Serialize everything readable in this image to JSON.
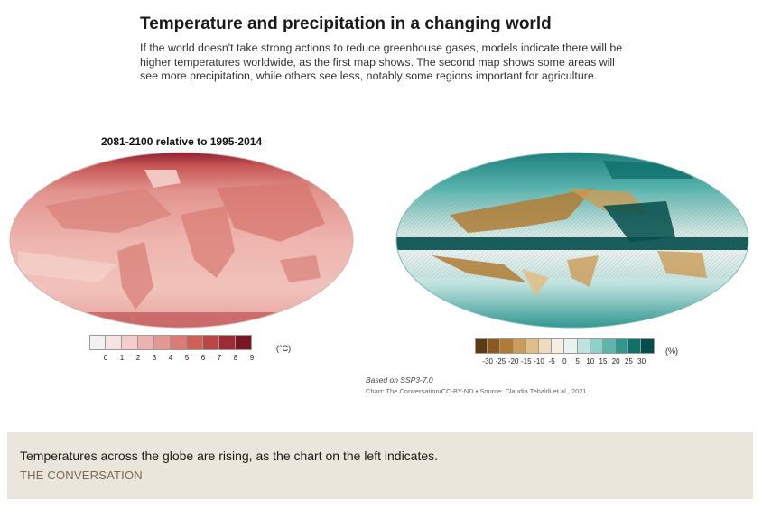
{
  "header": {
    "title": "Temperature and precipitation in a changing world",
    "subtitle": "If the world doesn't take strong actions to reduce greenhouse gases, models indicate there will be higher temperatures worldwide, as the first map shows. The second map shows some areas will see more precipitation, while others see less, notably some regions important for agriculture."
  },
  "maps": {
    "period_label": "2081-2100 relative to 1995-2014",
    "temperature": {
      "unit": "(°C)",
      "ticks": [
        "0",
        "1",
        "2",
        "3",
        "4",
        "5",
        "6",
        "7",
        "8",
        "9"
      ],
      "colors": [
        "#f4f1f2",
        "#f7e3e3",
        "#f2cdcc",
        "#ecb3b0",
        "#e59792",
        "#db7b74",
        "#cf6059",
        "#bb4644",
        "#9e2a34",
        "#7a1525"
      ]
    },
    "precipitation": {
      "unit": "(%)",
      "ticks": [
        "-30",
        "-25",
        "-20",
        "-15",
        "-10",
        "-5",
        "0",
        "5",
        "10",
        "15",
        "20",
        "25",
        "30"
      ],
      "colors": [
        "#5e3a12",
        "#8a5a1e",
        "#b07c35",
        "#cc9c58",
        "#e0bf87",
        "#efdcbc",
        "#f7efe2",
        "#e6f3f1",
        "#bfe4df",
        "#8fd0ca",
        "#5cb6b0",
        "#2f9690",
        "#0f6f6b",
        "#034d4b"
      ]
    }
  },
  "notes": {
    "based_on": "Based on SSP3-7.0",
    "credit": "Chart: The Conversation/CC-BY-ND • Source: Claudia Tebaldi et al., 2021"
  },
  "caption": {
    "text": "Temperatures across the globe are rising, as the chart on the left indicates.",
    "source": "THE CONVERSATION"
  }
}
